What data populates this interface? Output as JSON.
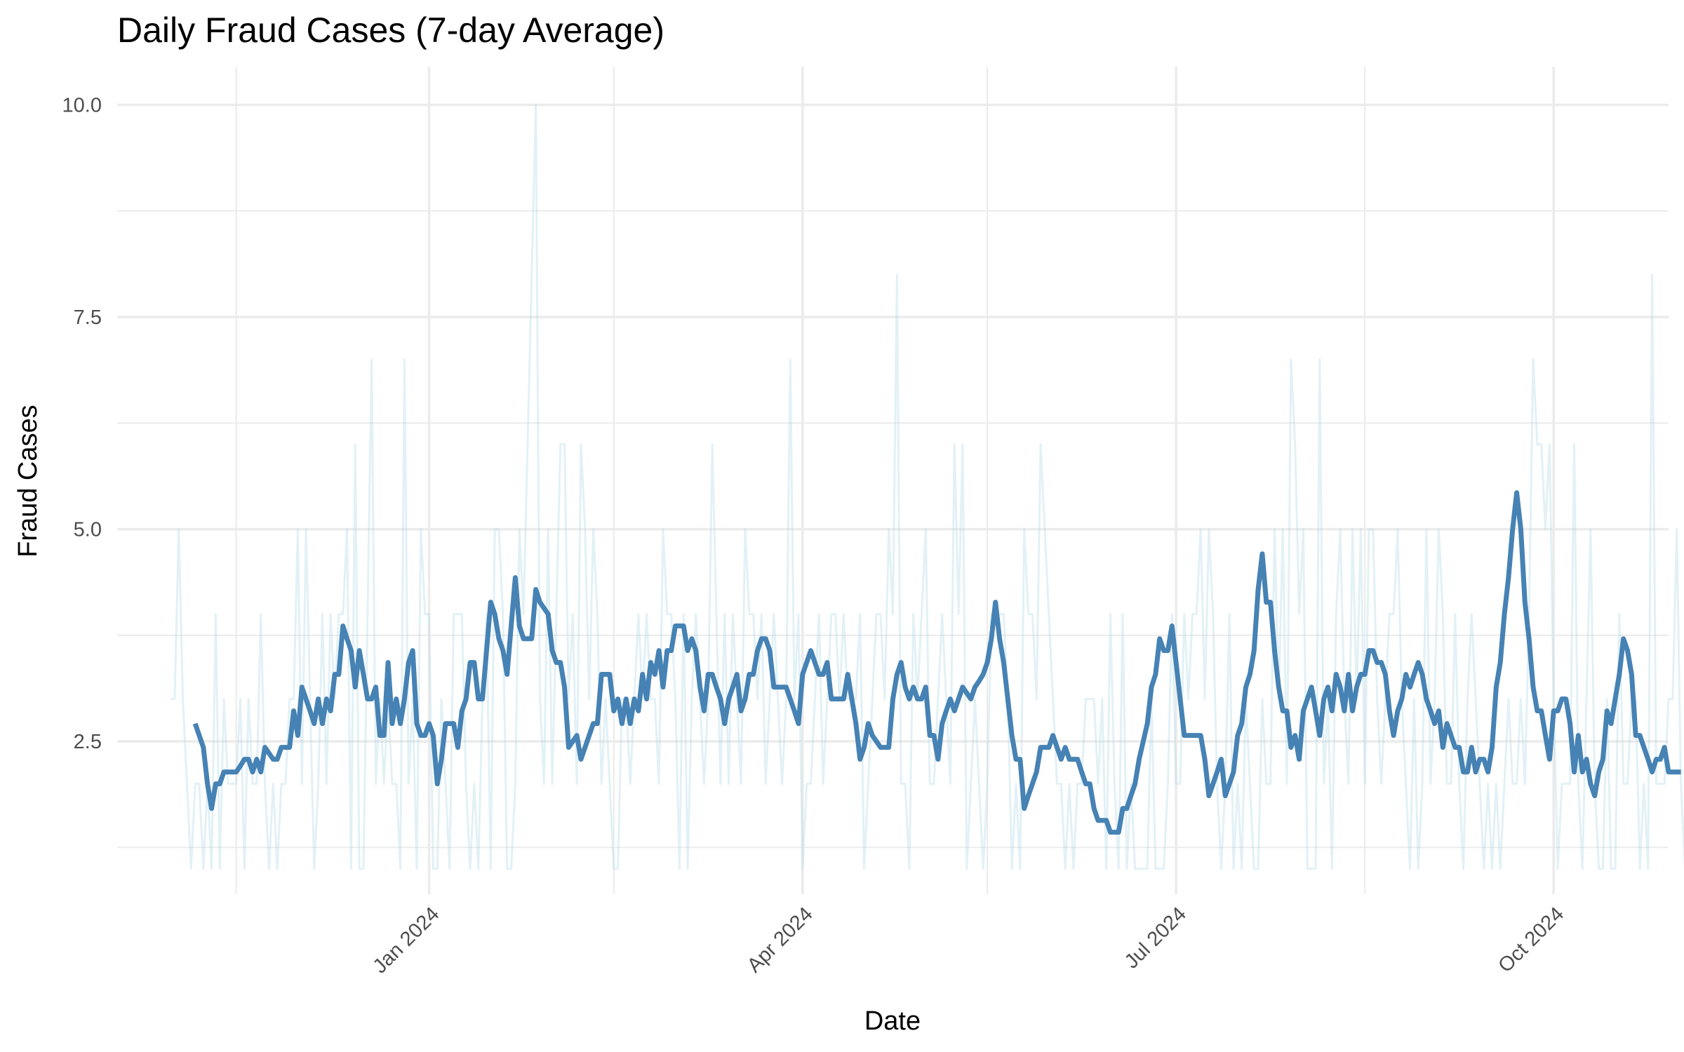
{
  "chart_data": {
    "type": "line",
    "title": "Daily Fraud Cases (7-day Average)",
    "xlabel": "Date",
    "ylabel": "Fraud Cases",
    "x_start": "2023-10-30",
    "x_end": "2024-10-15",
    "xlim": [
      "2023-10-17",
      "2024-10-29"
    ],
    "ylim": [
      0.7,
      10.45
    ],
    "x_ticks": [
      {
        "date": "2024-01-01",
        "label": "Jan 2024"
      },
      {
        "date": "2024-04-01",
        "label": "Apr 2024"
      },
      {
        "date": "2024-07-01",
        "label": "Jul 2024"
      },
      {
        "date": "2024-10-01",
        "label": "Oct 2024"
      }
    ],
    "x_minor_ticks": [
      "2023-11-15",
      "2024-02-15",
      "2024-05-16",
      "2024-08-16"
    ],
    "y_ticks": [
      {
        "value": 2.5,
        "label": "2.5"
      },
      {
        "value": 5.0,
        "label": "5.0"
      },
      {
        "value": 7.5,
        "label": "7.5"
      },
      {
        "value": 10.0,
        "label": "10.0"
      }
    ],
    "y_minor_ticks": [
      1.25,
      3.75,
      6.25,
      8.75
    ],
    "grid": true,
    "legend": "none",
    "colors": {
      "smoothed": "#4682B4",
      "daily": "#ADD8E6",
      "grid": "#EBEBEB",
      "background": "#FFFFFF"
    },
    "series": [
      {
        "style": "thin light line",
        "start_date": "2023-10-30",
        "values": [
          3,
          3,
          5,
          3,
          2,
          1,
          2,
          2,
          1,
          2,
          1,
          4,
          1,
          3,
          2,
          2,
          2,
          3,
          1,
          3,
          2,
          2,
          4,
          2,
          1,
          2,
          1,
          2,
          2,
          3,
          3,
          5,
          2,
          5,
          3,
          1,
          2,
          4,
          2,
          4,
          3,
          4,
          4,
          5,
          1,
          6,
          1,
          1,
          4,
          7,
          2,
          3,
          2,
          3,
          2,
          2,
          1,
          7,
          2,
          3,
          1,
          5,
          4,
          4,
          1,
          1,
          3,
          2,
          1,
          4,
          4,
          4,
          2,
          1,
          2,
          1,
          3,
          4,
          1,
          5,
          5,
          4,
          1,
          1,
          2,
          5,
          4,
          6,
          8,
          10,
          3,
          2,
          5,
          2,
          4,
          6,
          6,
          3,
          4,
          2,
          6,
          5,
          3,
          5,
          4,
          2,
          3,
          2,
          1,
          1,
          3,
          3,
          2,
          3,
          4,
          3,
          4,
          3,
          3,
          2,
          5,
          4,
          4,
          3,
          1,
          4,
          1,
          3,
          4,
          3,
          2,
          3,
          6,
          4,
          2,
          4,
          2,
          4,
          3,
          2,
          5,
          4,
          4,
          3,
          4,
          2,
          3,
          4,
          3,
          2,
          3,
          7,
          3,
          4,
          1,
          2,
          2,
          3,
          4,
          2,
          3,
          4,
          4,
          3,
          4,
          3,
          3,
          3,
          4,
          1,
          2,
          3,
          4,
          4,
          3,
          5,
          4,
          8,
          2,
          2,
          1,
          4,
          3,
          4,
          5,
          2,
          2,
          3,
          4,
          3,
          2,
          6,
          4,
          6,
          1,
          2,
          3,
          2,
          1,
          2,
          4,
          4,
          4,
          4,
          3,
          1,
          2,
          1,
          5,
          4,
          4,
          3,
          6,
          5,
          4,
          3,
          2,
          2,
          1,
          2,
          1,
          2,
          2,
          3,
          3,
          3,
          2,
          3,
          1,
          4,
          2,
          1,
          4,
          1,
          2,
          1,
          1,
          1,
          1,
          3,
          1,
          1,
          1,
          2,
          4,
          2,
          2,
          4,
          3,
          4,
          4,
          5,
          3,
          5,
          4,
          2,
          1,
          2,
          4,
          1,
          2,
          1,
          3,
          2,
          1,
          1,
          3,
          2,
          2,
          5,
          3,
          5,
          2,
          7,
          6,
          4,
          5,
          1,
          1,
          1,
          7,
          2,
          3,
          1,
          4,
          5,
          3,
          2,
          5,
          3,
          5,
          2,
          5,
          5,
          3,
          2,
          3,
          4,
          4,
          5,
          3,
          2,
          1,
          3,
          1,
          2,
          5,
          2,
          3,
          5,
          4,
          2,
          2,
          4,
          2,
          1,
          3,
          4,
          3,
          2,
          1,
          2,
          1,
          2,
          1,
          2,
          3,
          2,
          2,
          3,
          2,
          4,
          7,
          6,
          6,
          5,
          6,
          3,
          1,
          2,
          2,
          2,
          6,
          2,
          1,
          3,
          5,
          2,
          1,
          1,
          3,
          1,
          1,
          4,
          2,
          2,
          3,
          3,
          1,
          2,
          1,
          8,
          2,
          2,
          2,
          3,
          3,
          5,
          2,
          1,
          2,
          2
        ],
        "note_mark": "daily"
      },
      {
        "style": "thick line",
        "start_date": "2023-11-05",
        "values": [
          2.71,
          2.57,
          2.43,
          2.0,
          1.71,
          2.0,
          2.0,
          2.14,
          2.14,
          2.14,
          2.14,
          2.21,
          2.29,
          2.29,
          2.14,
          2.29,
          2.14,
          2.43,
          2.36,
          2.29,
          2.29,
          2.43,
          2.43,
          2.43,
          2.86,
          2.57,
          3.14,
          3.0,
          2.86,
          2.71,
          3.0,
          2.71,
          3.0,
          2.86,
          3.29,
          3.29,
          3.86,
          3.71,
          3.57,
          3.14,
          3.57,
          3.29,
          3.0,
          3.0,
          3.14,
          2.57,
          2.57,
          3.43,
          2.71,
          3.0,
          2.71,
          3.0,
          3.43,
          3.57,
          2.71,
          2.57,
          2.57,
          2.71,
          2.57,
          2.0,
          2.29,
          2.71,
          2.71,
          2.71,
          2.43,
          2.86,
          3.0,
          3.43,
          3.43,
          3.0,
          3.0,
          3.57,
          4.14,
          4.0,
          3.71,
          3.57,
          3.29,
          3.86,
          4.43,
          3.86,
          3.71,
          3.71,
          3.71,
          4.29,
          4.14,
          4.07,
          4.0,
          3.57,
          3.43,
          3.43,
          3.14,
          2.43,
          2.5,
          2.57,
          2.29,
          2.43,
          2.57,
          2.71,
          2.71,
          3.29,
          3.29,
          3.29,
          2.86,
          3.0,
          2.71,
          3.0,
          2.71,
          3.0,
          2.86,
          3.29,
          3.0,
          3.43,
          3.29,
          3.57,
          3.14,
          3.57,
          3.57,
          3.86,
          3.86,
          3.86,
          3.57,
          3.71,
          3.57,
          3.14,
          2.86,
          3.29,
          3.29,
          3.14,
          3.0,
          2.71,
          3.0,
          3.14,
          3.29,
          2.86,
          3.0,
          3.29,
          3.29,
          3.57,
          3.71,
          3.71,
          3.57,
          3.14,
          3.14,
          3.14,
          3.14,
          3.0,
          2.86,
          2.71,
          3.29,
          3.43,
          3.57,
          3.43,
          3.29,
          3.29,
          3.43,
          3.0,
          3.0,
          3.0,
          3.0,
          3.29,
          3.0,
          2.71,
          2.29,
          2.43,
          2.71,
          2.57,
          2.5,
          2.43,
          2.43,
          2.43,
          3.0,
          3.29,
          3.43,
          3.14,
          3.0,
          3.14,
          3.0,
          3.0,
          3.14,
          2.57,
          2.57,
          2.29,
          2.71,
          2.86,
          3.0,
          2.86,
          3.0,
          3.14,
          3.07,
          3.0,
          3.14,
          3.21,
          3.29,
          3.43,
          3.71,
          4.14,
          3.71,
          3.43,
          3.0,
          2.57,
          2.29,
          2.29,
          1.71,
          1.86,
          2.0,
          2.14,
          2.43,
          2.43,
          2.43,
          2.57,
          2.43,
          2.29,
          2.43,
          2.29,
          2.29,
          2.29,
          2.14,
          2.0,
          2.0,
          1.71,
          1.57,
          1.57,
          1.57,
          1.43,
          1.43,
          1.43,
          1.71,
          1.71,
          1.86,
          2.0,
          2.29,
          2.5,
          2.71,
          3.14,
          3.29,
          3.71,
          3.57,
          3.57,
          3.86,
          3.43,
          3.0,
          2.57,
          2.57,
          2.57,
          2.57,
          2.57,
          2.29,
          1.86,
          2.0,
          2.14,
          2.29,
          1.86,
          2.0,
          2.14,
          2.57,
          2.71,
          3.14,
          3.29,
          3.57,
          4.29,
          4.71,
          4.14,
          4.14,
          3.57,
          3.14,
          2.86,
          2.86,
          2.43,
          2.57,
          2.29,
          2.86,
          3.0,
          3.14,
          2.86,
          2.57,
          3.0,
          3.14,
          2.86,
          3.29,
          3.14,
          2.86,
          3.29,
          2.86,
          3.14,
          3.29,
          3.29,
          3.57,
          3.57,
          3.43,
          3.43,
          3.29,
          2.86,
          2.57,
          2.86,
          3.0,
          3.29,
          3.14,
          3.29,
          3.43,
          3.29,
          3.0,
          2.86,
          2.71,
          2.86,
          2.43,
          2.71,
          2.57,
          2.43,
          2.43,
          2.14,
          2.14,
          2.43,
          2.14,
          2.29,
          2.29,
          2.14,
          2.43,
          3.14,
          3.43,
          4.0,
          4.43,
          5.0,
          5.43,
          5.0,
          4.14,
          3.71,
          3.14,
          2.86,
          2.86,
          2.57,
          2.29,
          2.86,
          2.86,
          3.0,
          3.0,
          2.71,
          2.14,
          2.57,
          2.14,
          2.29,
          2.0,
          1.86,
          2.14,
          2.29,
          2.86,
          2.71,
          3.0,
          3.29,
          3.71,
          3.57,
          3.29,
          2.57,
          2.57,
          2.43,
          2.29,
          2.14,
          2.29,
          2.29,
          2.43,
          2.14,
          2.14,
          2.14,
          2.14
        ],
        "note_mark": "7-day average"
      }
    ]
  }
}
